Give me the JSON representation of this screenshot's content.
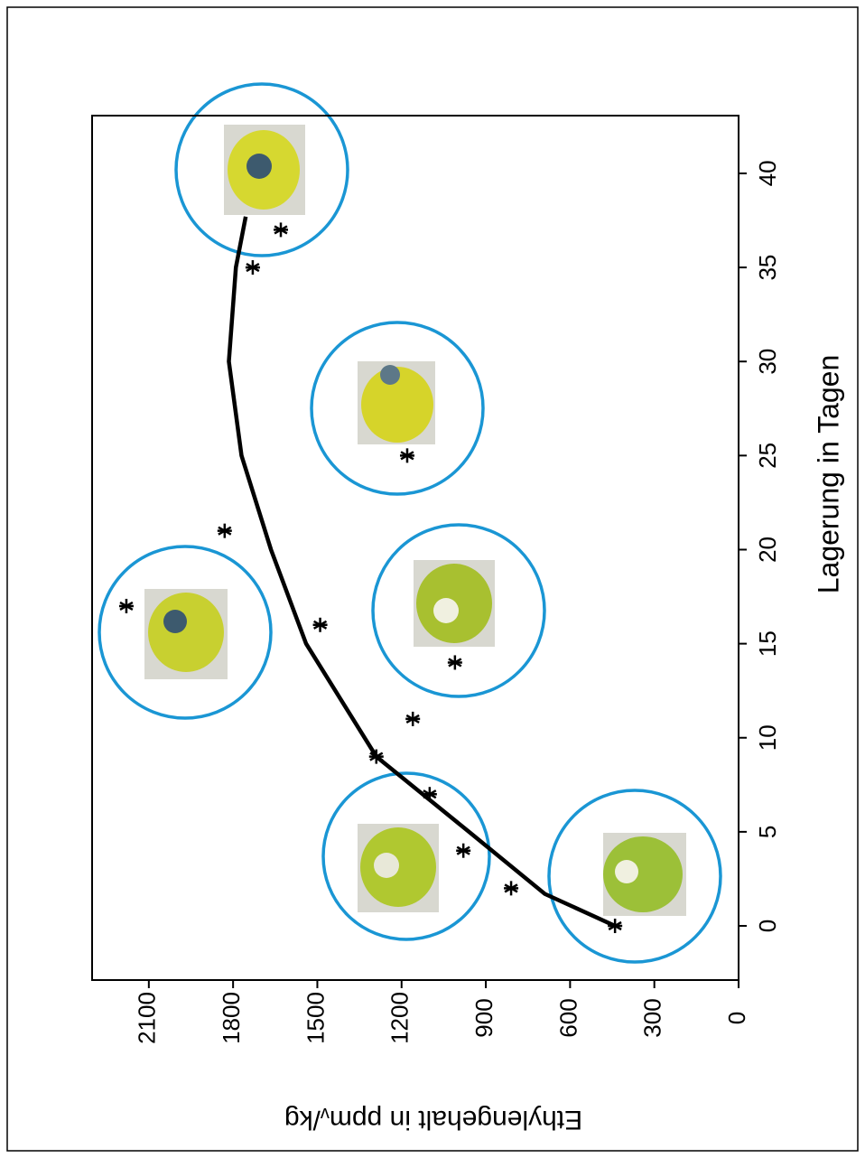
{
  "chart_data": {
    "type": "scatter",
    "xlabel": "Lagerung in Tagen",
    "ylabel_parts": [
      "Ethylengehalt in ppm",
      "v",
      "/kg"
    ],
    "x": [
      0,
      2,
      4,
      7,
      9,
      11,
      14,
      16,
      17,
      21,
      25,
      35,
      37
    ],
    "values": [
      440,
      810,
      980,
      1100,
      1290,
      1160,
      1010,
      1490,
      2180,
      1830,
      1180,
      1730,
      1630
    ],
    "color": "#000000",
    "fit": {
      "x": [
        0,
        1.7,
        5,
        9,
        15,
        20,
        25,
        30,
        35,
        37.7
      ],
      "values": [
        440,
        690,
        960,
        1290,
        1540,
        1665,
        1770,
        1815,
        1790,
        1755
      ],
      "color": "#000000"
    },
    "xlim": [
      -2.88,
      43.07
    ],
    "xticks": [
      0,
      5,
      10,
      15,
      20,
      25,
      30,
      35,
      40
    ],
    "ylim": [
      0,
      2302
    ],
    "yticks": [
      0,
      300,
      600,
      900,
      1200,
      1500,
      1800,
      2100
    ]
  }
}
